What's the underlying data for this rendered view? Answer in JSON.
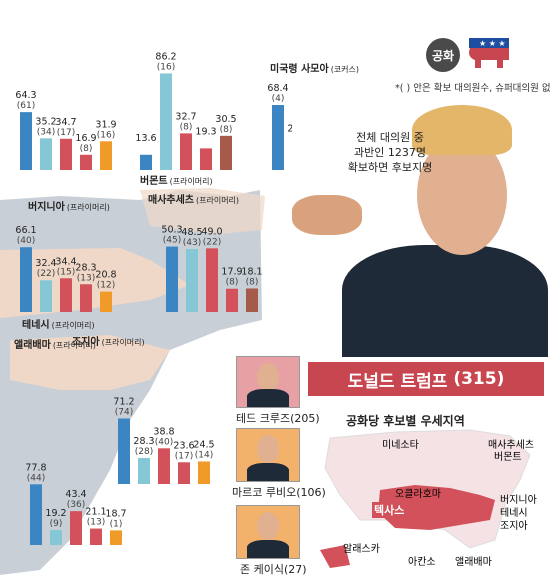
{
  "party": {
    "label": "공화",
    "note": "*( ) 안은 확보 대의원수, 슈퍼대의원 없음"
  },
  "delegate_note": [
    "전체 대의원 중",
    "과반인 1237명",
    "확보하면 후보지명"
  ],
  "colors": {
    "trump": "#3a85c2",
    "cruz": "#d2515a",
    "rubio": "#f09a2a",
    "kasich": "#86c7d6",
    "carson": "#a55a4a",
    "map_bg": "#efd8c8",
    "map_region": "#c9cfd6"
  },
  "winner": {
    "name": "도널드 트럼프",
    "delegates": "(315)"
  },
  "candidates": [
    {
      "label": "테드 크루즈",
      "delegates": "(205)"
    },
    {
      "label": "마르코 루비오",
      "delegates": "(106)"
    },
    {
      "label": "존 케이식",
      "delegates": "(27)"
    }
  ],
  "map_title": "공화당 후보별 우세지역",
  "map_labels": [
    "미네소타",
    "매사추세츠",
    "버몬트",
    "오클라호마",
    "버지니아",
    "테네시",
    "텍사스",
    "조지아",
    "알래스카",
    "아칸소",
    "앨래배마"
  ],
  "chart_data": [
    {
      "type": "bar",
      "state": "버지니아",
      "kind": "(프라이머리)",
      "series": [
        {
          "candidate_color": "#3a85c2",
          "value": 64.3,
          "value_label": "64.3",
          "delegates_label": "(61)"
        },
        {
          "candidate_color": "#86c7d6",
          "value": 35.2,
          "value_label": "35.2",
          "delegates_label": "(34)"
        },
        {
          "candidate_color": "#d2515a",
          "value": 34.7,
          "value_label": "34.7",
          "delegates_label": "(17)"
        },
        {
          "candidate_color": "#d2515a",
          "value": 16.9,
          "value_label": "16.9",
          "delegates_label": "(8)"
        },
        {
          "candidate_color": "#f09a2a",
          "value": 31.9,
          "value_label": "31.9",
          "delegates_label": "(16)"
        }
      ]
    },
    {
      "type": "bar",
      "state": "버몬트",
      "kind": "(프라이머리)",
      "series": [
        {
          "candidate_color": "#3a85c2",
          "value": 13.6,
          "value_label": "13.6",
          "delegates_label": ""
        },
        {
          "candidate_color": "#86c7d6",
          "value": 86.2,
          "value_label": "86.2",
          "delegates_label": "(16)"
        },
        {
          "candidate_color": "#d2515a",
          "value": 32.7,
          "value_label": "32.7",
          "delegates_label": "(8)"
        },
        {
          "candidate_color": "#d2515a",
          "value": 19.3,
          "value_label": "19.3",
          "delegates_label": ""
        },
        {
          "candidate_color": "#a55a4a",
          "value": 30.5,
          "value_label": "30.5",
          "delegates_label": "(8)"
        }
      ]
    },
    {
      "type": "bar",
      "state": "미국령 사모아",
      "kind": "(코커스)",
      "series": [
        {
          "candidate_color": "#3a85c2",
          "value": 68.4,
          "value_label": "68.4",
          "delegates_label": "(4)"
        },
        {
          "candidate_color": "#86c7d6",
          "value": 25.7,
          "value_label": "25.7",
          "delegates_label": "(2)"
        }
      ]
    },
    {
      "type": "bar",
      "state": "매사추세츠",
      "kind": "(프라이머리)",
      "series": [
        {
          "candidate_color": "#3a85c2",
          "value": 50.3,
          "value_label": "50.3",
          "delegates_label": "(45)"
        },
        {
          "candidate_color": "#86c7d6",
          "value": 48.5,
          "value_label": "48.5",
          "delegates_label": "(43)"
        },
        {
          "candidate_color": "#d2515a",
          "value": 49.0,
          "value_label": "49.0",
          "delegates_label": "(22)"
        },
        {
          "candidate_color": "#d2515a",
          "value": 17.9,
          "value_label": "17.9",
          "delegates_label": "(8)"
        },
        {
          "candidate_color": "#a55a4a",
          "value": 18.1,
          "value_label": "18.1",
          "delegates_label": "(8)"
        }
      ]
    },
    {
      "type": "bar",
      "state": "테네시",
      "kind": "(프라이머리)",
      "series": [
        {
          "candidate_color": "#3a85c2",
          "value": 66.1,
          "value_label": "66.1",
          "delegates_label": "(40)"
        },
        {
          "candidate_color": "#86c7d6",
          "value": 32.4,
          "value_label": "32.4",
          "delegates_label": "(22)"
        },
        {
          "candidate_color": "#d2515a",
          "value": 34.4,
          "value_label": "34.4",
          "delegates_label": "(15)"
        },
        {
          "candidate_color": "#d2515a",
          "value": 28.3,
          "value_label": "28.3",
          "delegates_label": "(13)"
        },
        {
          "candidate_color": "#f09a2a",
          "value": 20.8,
          "value_label": "20.8",
          "delegates_label": "(12)"
        }
      ]
    },
    {
      "type": "bar",
      "state": "조지아",
      "kind": "(프라이머리)",
      "series": [
        {
          "candidate_color": "#3a85c2",
          "value": 71.2,
          "value_label": "71.2",
          "delegates_label": "(74)"
        },
        {
          "candidate_color": "#86c7d6",
          "value": 28.3,
          "value_label": "28.3",
          "delegates_label": "(28)"
        },
        {
          "candidate_color": "#d2515a",
          "value": 38.8,
          "value_label": "38.8",
          "delegates_label": "(40)"
        },
        {
          "candidate_color": "#d2515a",
          "value": 23.6,
          "value_label": "23.6",
          "delegates_label": "(17)"
        },
        {
          "candidate_color": "#f09a2a",
          "value": 24.5,
          "value_label": "24.5",
          "delegates_label": "(14)"
        }
      ]
    },
    {
      "type": "bar",
      "state": "앨래배마",
      "kind": "(프라이머리)",
      "series": [
        {
          "candidate_color": "#3a85c2",
          "value": 77.8,
          "value_label": "77.8",
          "delegates_label": "(44)"
        },
        {
          "candidate_color": "#86c7d6",
          "value": 19.2,
          "value_label": "19.2",
          "delegates_label": "(9)"
        },
        {
          "candidate_color": "#d2515a",
          "value": 43.4,
          "value_label": "43.4",
          "delegates_label": "(36)"
        },
        {
          "candidate_color": "#d2515a",
          "value": 21.1,
          "value_label": "21.1",
          "delegates_label": "(13)"
        },
        {
          "candidate_color": "#f09a2a",
          "value": 18.7,
          "value_label": "18.7",
          "delegates_label": "(1)"
        }
      ]
    }
  ]
}
